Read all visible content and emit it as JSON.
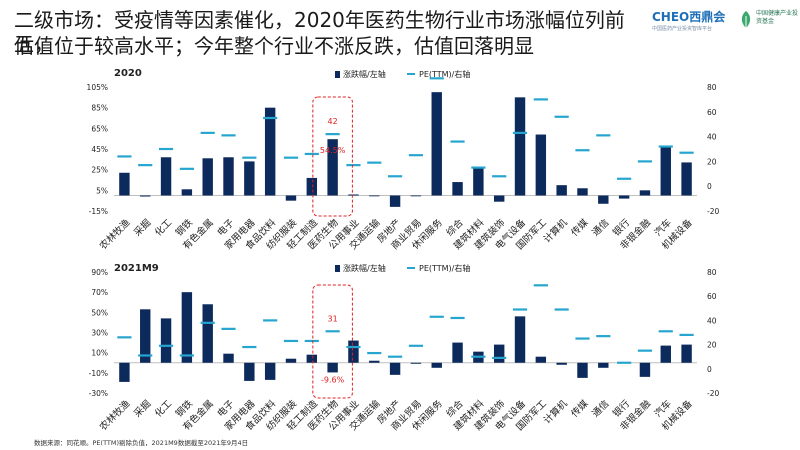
{
  "title_line1": "二级市场：受疫情等因素催化，2020年医药生物行业市场涨幅位列前五，",
  "title_line2": "估值位于较高水平；今年整个行业不涨反跌，估值回落明显",
  "logo": {
    "brand": "CHEO西鼎会",
    "tagline": "中国医药产业投资智库平台",
    "partner": "中国健康产业投资基金"
  },
  "colors": {
    "bar": "#0d2a5c",
    "line": "#26a6cf",
    "highlight": "#e02020",
    "axis": "#bfbfbf"
  },
  "source": "数据来源：同花顺。PE(TTM)剔除负值，2021M9数据截至2021年9月4日",
  "chart_data": [
    {
      "type": "bar",
      "label": "2020",
      "categories": [
        "农林牧渔",
        "采掘",
        "化工",
        "钢铁",
        "有色金属",
        "电子",
        "家用电器",
        "食品饮料",
        "纺织服装",
        "轻工制造",
        "医药生物",
        "公用事业",
        "交通运输",
        "房地产",
        "商业贸易",
        "休闲服务",
        "综合",
        "建筑材料",
        "建筑装饰",
        "电气设备",
        "国防军工",
        "计算机",
        "传媒",
        "通信",
        "银行",
        "非银金融",
        "汽车",
        "机械设备"
      ],
      "series": [
        {
          "name": "涨跌幅/左轴",
          "axis": "left",
          "values": [
            22,
            -1,
            37,
            6,
            36,
            37,
            33,
            85,
            -5,
            17,
            54.5,
            1,
            0,
            -11,
            0,
            100,
            13,
            27,
            -6,
            95,
            59,
            10,
            7,
            -8,
            -3,
            5,
            47,
            32
          ]
        },
        {
          "name": "PE(TTM)/右轴",
          "axis": "right",
          "values": [
            24,
            17,
            30,
            14,
            43,
            41,
            23,
            55,
            23,
            26,
            42,
            17,
            19,
            8,
            25,
            87,
            36,
            15,
            8,
            43,
            70,
            56,
            29,
            41,
            6,
            20,
            32,
            27
          ]
        }
      ],
      "left_ticks": [
        "105%",
        "85%",
        "65%",
        "45%",
        "25%",
        "5%",
        "-15%"
      ],
      "right_ticks": [
        "80",
        "60",
        "40",
        "20",
        "0",
        "-20"
      ],
      "ylim_left": [
        -15,
        105
      ],
      "ylim_right": [
        -20,
        80
      ],
      "highlight": {
        "category": "医药生物",
        "bar_label": "54.5%",
        "line_label": "42"
      }
    },
    {
      "type": "bar",
      "label": "2021M9",
      "categories": [
        "农林牧渔",
        "采掘",
        "化工",
        "钢铁",
        "有色金属",
        "电子",
        "家用电器",
        "食品饮料",
        "纺织服装",
        "轻工制造",
        "医药生物",
        "公用事业",
        "交通运输",
        "房地产",
        "商业贸易",
        "休闲服务",
        "综合",
        "建筑材料",
        "建筑装饰",
        "电气设备",
        "国防军工",
        "计算机",
        "传媒",
        "通信",
        "银行",
        "非银金融",
        "汽车",
        "机械设备"
      ],
      "series": [
        {
          "name": "涨跌幅/左轴",
          "axis": "left",
          "values": [
            -19,
            53,
            44,
            70,
            58,
            9,
            -18,
            -17,
            4,
            8,
            -9.6,
            22,
            2,
            -12,
            -1,
            -5,
            20,
            11,
            18,
            46,
            6,
            -2,
            -15,
            -5,
            0,
            -14,
            17,
            18
          ]
        },
        {
          "name": "PE(TTM)/右轴",
          "axis": "right",
          "values": [
            26,
            11,
            19,
            11,
            38,
            33,
            18,
            40,
            23,
            23,
            31,
            18,
            13,
            10,
            19,
            43,
            42,
            10,
            9,
            49,
            69,
            49,
            25,
            27,
            5,
            15,
            31,
            28
          ]
        }
      ],
      "left_ticks": [
        "90%",
        "70%",
        "50%",
        "30%",
        "10%",
        "-10%",
        "-30%"
      ],
      "right_ticks": [
        "80",
        "60",
        "40",
        "20",
        "0",
        "-20"
      ],
      "ylim_left": [
        -30,
        90
      ],
      "ylim_right": [
        -20,
        80
      ],
      "highlight": {
        "category": "医药生物",
        "bar_label": "-9.6%",
        "line_label": "31"
      }
    }
  ]
}
